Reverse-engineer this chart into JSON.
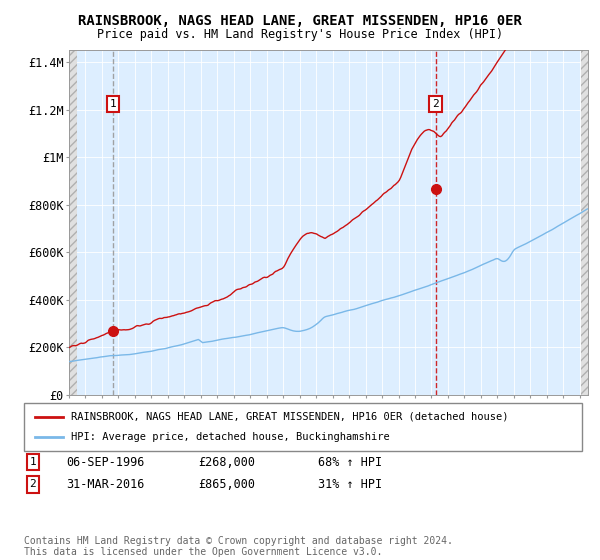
{
  "title": "RAINSBROOK, NAGS HEAD LANE, GREAT MISSENDEN, HP16 0ER",
  "subtitle": "Price paid vs. HM Land Registry's House Price Index (HPI)",
  "ylim": [
    0,
    1450000
  ],
  "xlim_start": 1994.0,
  "xlim_end": 2025.5,
  "sale1_date": 1996.69,
  "sale1_price": 268000,
  "sale1_label": "1",
  "sale2_date": 2016.25,
  "sale2_price": 865000,
  "sale2_label": "2",
  "hpi_color": "#7ab8e8",
  "property_color": "#cc1111",
  "legend_property": "RAINSBROOK, NAGS HEAD LANE, GREAT MISSENDEN, HP16 0ER (detached house)",
  "legend_hpi": "HPI: Average price, detached house, Buckinghamshire",
  "annotation1_date": "06-SEP-1996",
  "annotation1_price": "£268,000",
  "annotation1_hpi": "68% ↑ HPI",
  "annotation2_date": "31-MAR-2016",
  "annotation2_price": "£865,000",
  "annotation2_hpi": "31% ↑ HPI",
  "footer": "Contains HM Land Registry data © Crown copyright and database right 2024.\nThis data is licensed under the Open Government Licence v3.0.",
  "plot_bg_color": "#ddeeff",
  "yticks": [
    0,
    200000,
    400000,
    600000,
    800000,
    1000000,
    1200000,
    1400000
  ],
  "ytick_labels": [
    "£0",
    "£200K",
    "£400K",
    "£600K",
    "£800K",
    "£1M",
    "£1.2M",
    "£1.4M"
  ]
}
